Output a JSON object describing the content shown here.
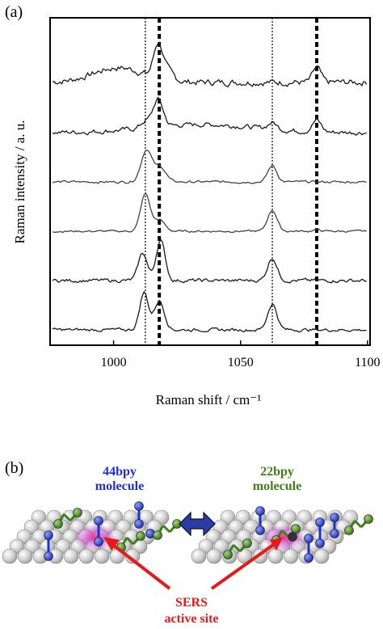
{
  "panel_a_label": "(a)",
  "panel_b_label": "(b)",
  "chart_data": {
    "type": "line",
    "title": "",
    "xlabel": "Raman shift / cm⁻¹",
    "ylabel": "Raman intensity / a. u.",
    "xlim": [
      975,
      1101
    ],
    "xticks": [
      1000,
      1050,
      1100
    ],
    "x_tick_labels": [
      "1000",
      "1050",
      "1100"
    ],
    "grid": false,
    "yticks_shown": false,
    "reference_lines": [
      {
        "x": 1012.5,
        "style": "thin-dotted"
      },
      {
        "x": 1018,
        "style": "thick-dashed"
      },
      {
        "x": 1062.5,
        "style": "thin-dotted"
      },
      {
        "x": 1080,
        "style": "thick-dashed"
      }
    ],
    "series": [
      {
        "offset": 5,
        "baseline": 0.03,
        "noise": 0.16,
        "peaks": [
          {
            "x": 1017.5,
            "h": 1.0,
            "w": 2.5
          },
          {
            "x": 1021,
            "h": 0.3,
            "w": 3.5
          },
          {
            "x": 1080,
            "h": 0.45,
            "w": 2.2
          }
        ],
        "background": [
          {
            "x": 1002,
            "h": 0.45,
            "w": 14
          }
        ]
      },
      {
        "offset": 4,
        "baseline": 0.0,
        "noise": 0.12,
        "peaks": [
          {
            "x": 1017.5,
            "h": 0.85,
            "w": 2.8
          },
          {
            "x": 1012.5,
            "h": 0.2,
            "w": 2.5
          },
          {
            "x": 1062.5,
            "h": 0.2,
            "w": 2.5
          },
          {
            "x": 1080,
            "h": 0.35,
            "w": 2.5
          }
        ],
        "background": [
          {
            "x": 1035,
            "h": 0.25,
            "w": 30
          }
        ]
      },
      {
        "offset": 3,
        "baseline": 0.0,
        "noise": 0.06,
        "peaks": [
          {
            "x": 1013,
            "h": 1.0,
            "w": 3.0
          },
          {
            "x": 1018.5,
            "h": 0.45,
            "w": 3.0
          },
          {
            "x": 1062.5,
            "h": 0.5,
            "w": 2.5
          }
        ],
        "background": []
      },
      {
        "offset": 2,
        "baseline": 0.0,
        "noise": 0.05,
        "peaks": [
          {
            "x": 1012.5,
            "h": 1.15,
            "w": 2.6
          },
          {
            "x": 1018,
            "h": 0.35,
            "w": 3.0
          },
          {
            "x": 1062.5,
            "h": 0.65,
            "w": 2.6
          },
          {
            "x": 1080,
            "h": 0.05,
            "w": 2.0
          }
        ],
        "background": []
      },
      {
        "offset": 1,
        "baseline": 0.0,
        "noise": 0.09,
        "peaks": [
          {
            "x": 1011.5,
            "h": 0.85,
            "w": 2.5
          },
          {
            "x": 1018.5,
            "h": 1.25,
            "w": 2.5
          },
          {
            "x": 1062.5,
            "h": 0.7,
            "w": 2.6
          }
        ],
        "background": []
      },
      {
        "offset": 0,
        "baseline": 0.0,
        "noise": 0.08,
        "peaks": [
          {
            "x": 1012,
            "h": 1.15,
            "w": 2.4
          },
          {
            "x": 1018,
            "h": 0.9,
            "w": 2.8
          },
          {
            "x": 1062.5,
            "h": 0.8,
            "w": 2.6
          }
        ],
        "background": []
      }
    ]
  },
  "scheme": {
    "left_molecule_label_1": "44bpy",
    "left_molecule_label_2": "molecule",
    "right_molecule_label_1": "22bpy",
    "right_molecule_label_2": "molecule",
    "active_site_label_1": "SERS",
    "active_site_label_2": "active site",
    "colors": {
      "bpy44": "#1f2fd6",
      "bpy22": "#3f7f1a",
      "active_site": "#e21b1b",
      "hotspot": "#d43be0",
      "exchange_arrow": "#2a3aa8",
      "surface_atom": "#c9c9c9"
    }
  }
}
